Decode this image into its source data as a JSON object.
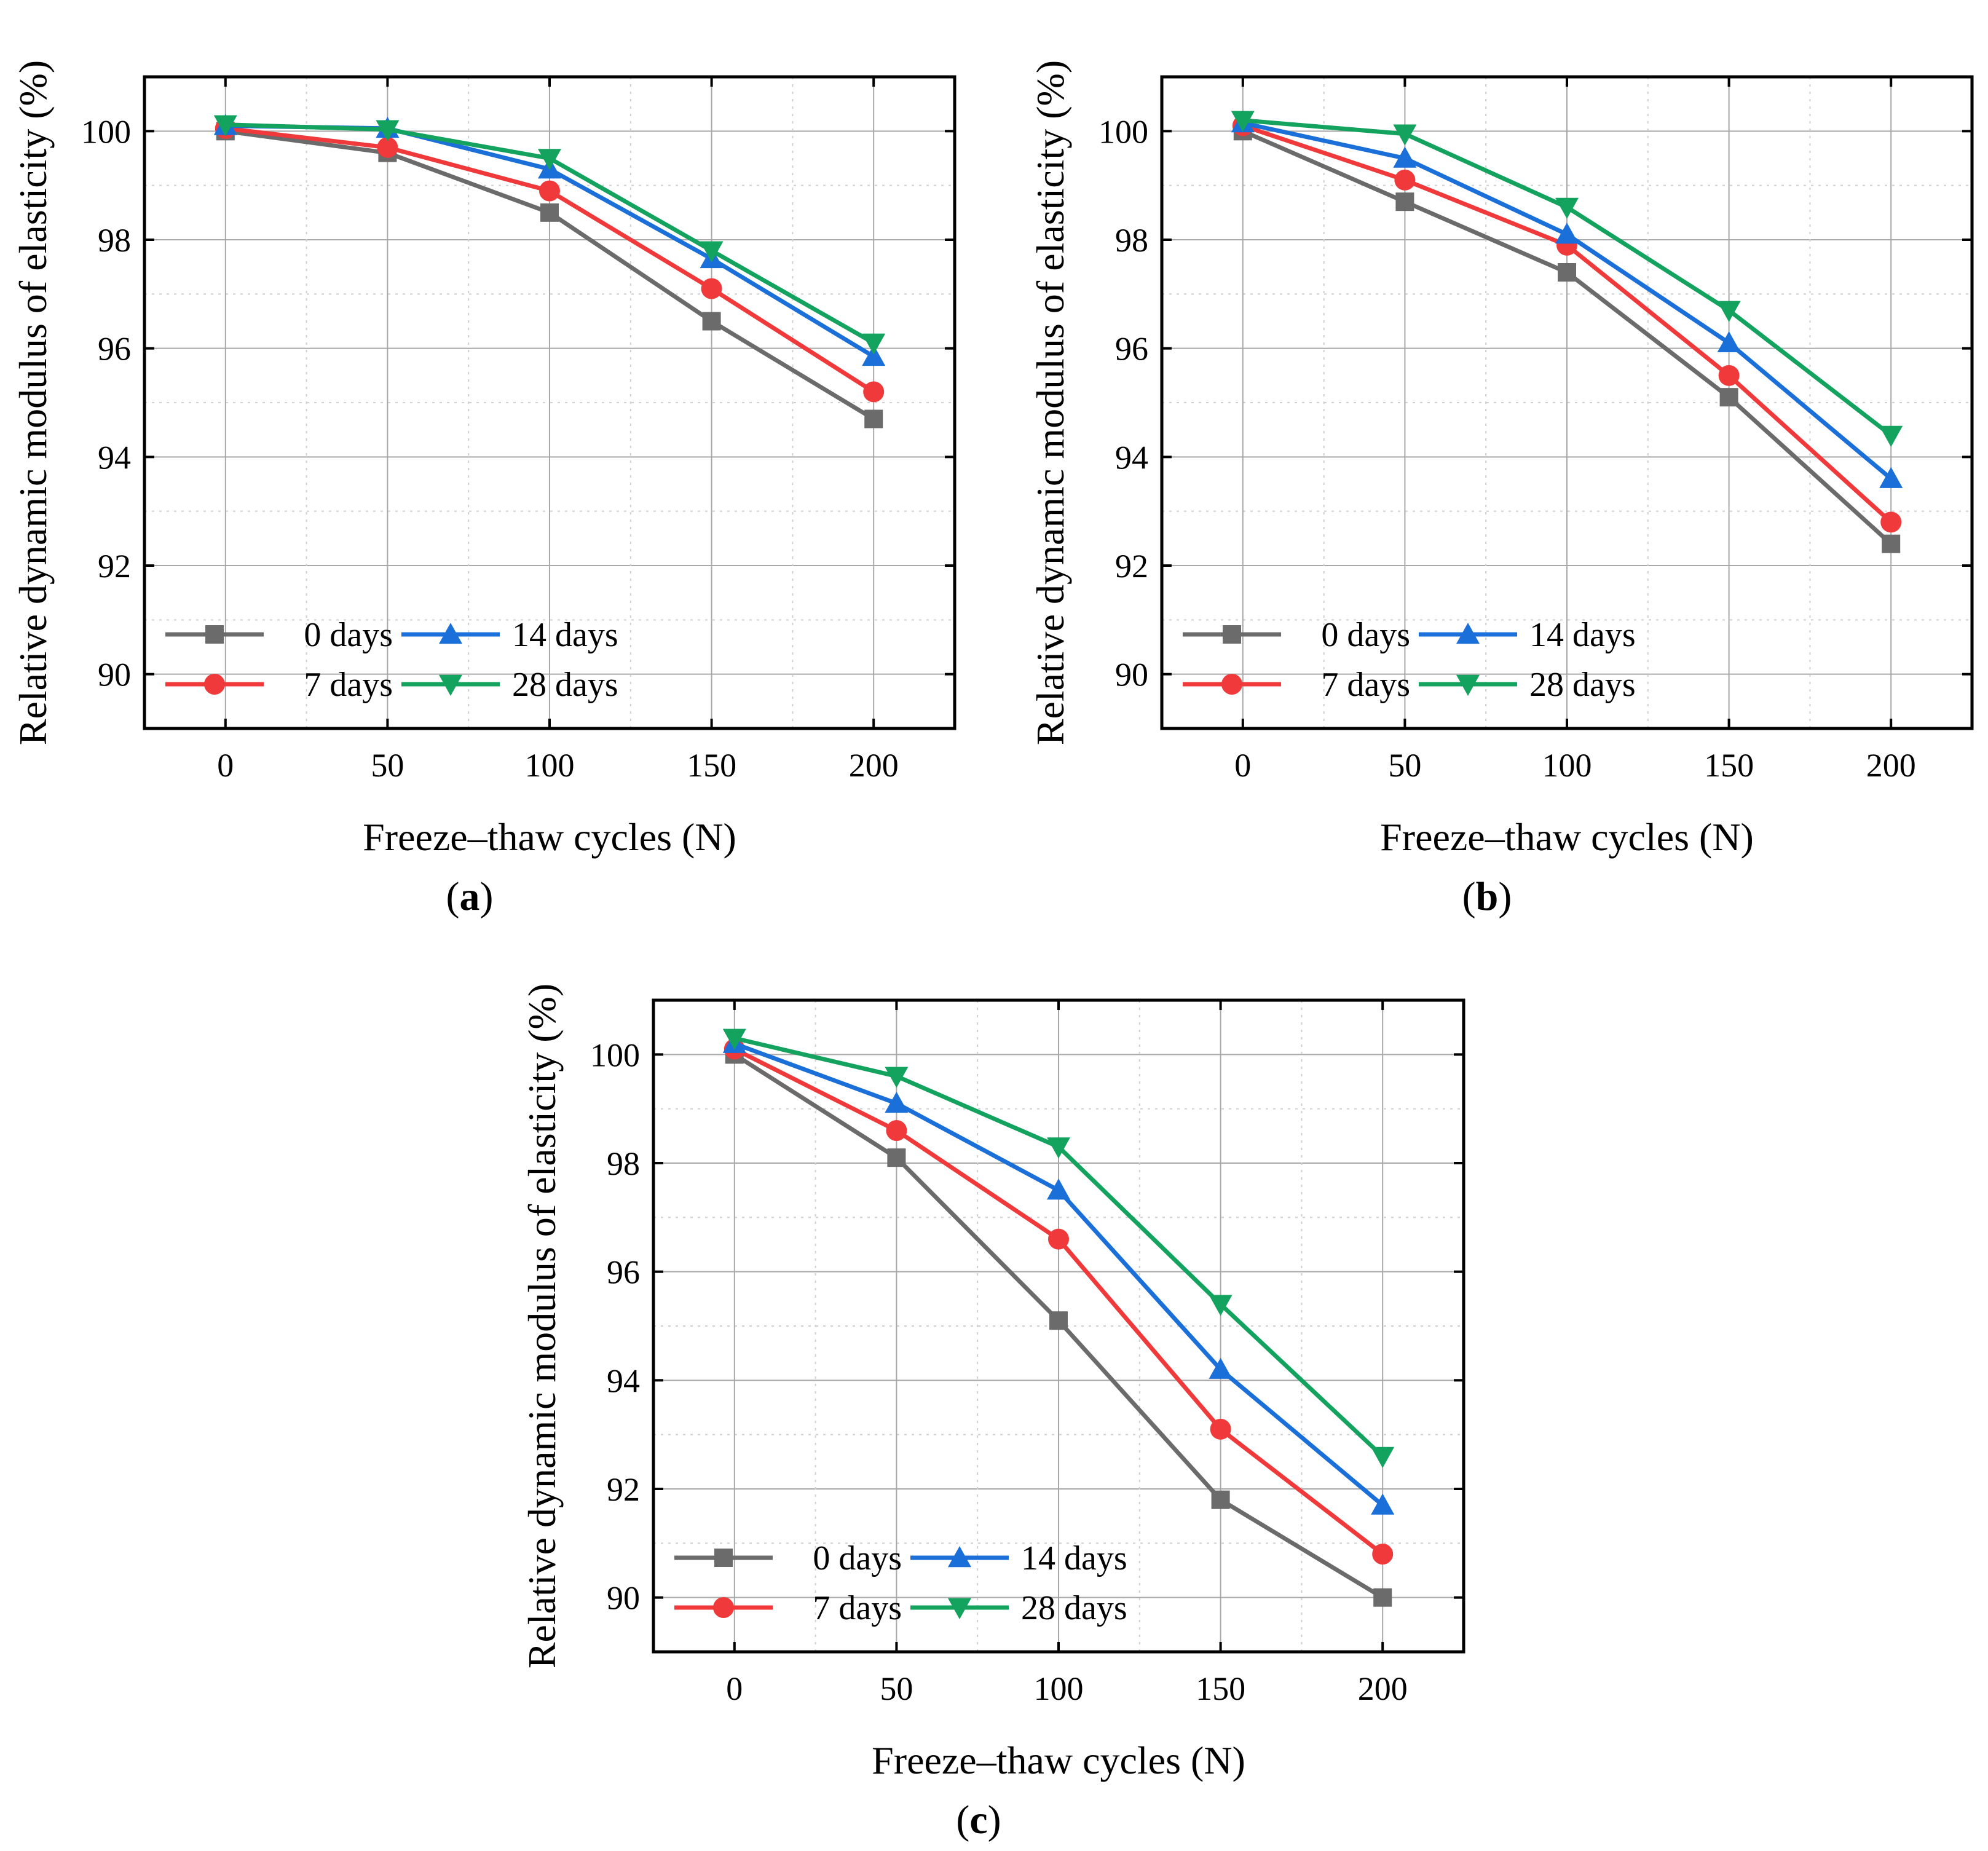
{
  "chart_data": [
    {
      "type": "line",
      "panel_label": "a",
      "xlabel": "Freeze–thaw cycles (N)",
      "ylabel": "Relative dynamic modulus of elasticity (%)",
      "xlim": [
        -25,
        225
      ],
      "ylim": [
        89,
        101
      ],
      "xticks": [
        0,
        50,
        100,
        150,
        200
      ],
      "yticks": [
        90,
        92,
        94,
        96,
        98,
        100
      ],
      "grid": true,
      "legend_position": "bottom-left",
      "x": [
        0,
        50,
        100,
        150,
        200
      ],
      "series": [
        {
          "name": "0 days",
          "color": "#6b6b6b",
          "marker": "square",
          "values": [
            100.0,
            99.6,
            98.5,
            96.5,
            94.7
          ]
        },
        {
          "name": "7 days",
          "color": "#f0393a",
          "marker": "circle",
          "values": [
            100.05,
            99.7,
            98.9,
            97.1,
            95.2
          ]
        },
        {
          "name": "14 days",
          "color": "#1a6fd8",
          "marker": "triangle-up",
          "values": [
            100.1,
            100.05,
            99.3,
            97.65,
            95.85
          ]
        },
        {
          "name": "28 days",
          "color": "#13a35f",
          "marker": "triangle-down",
          "values": [
            100.12,
            100.03,
            99.5,
            97.8,
            96.1
          ]
        }
      ]
    },
    {
      "type": "line",
      "panel_label": "b",
      "xlabel": "Freeze–thaw cycles (N)",
      "ylabel": "Relative dynamic modulus of elasticity (%)",
      "xlim": [
        -25,
        225
      ],
      "ylim": [
        89,
        101
      ],
      "xticks": [
        0,
        50,
        100,
        150,
        200
      ],
      "yticks": [
        90,
        92,
        94,
        96,
        98,
        100
      ],
      "grid": true,
      "legend_position": "bottom-left",
      "x": [
        0,
        50,
        100,
        150,
        200
      ],
      "series": [
        {
          "name": "0 days",
          "color": "#6b6b6b",
          "marker": "square",
          "values": [
            100.0,
            98.7,
            97.4,
            95.1,
            92.4
          ]
        },
        {
          "name": "7 days",
          "color": "#f0393a",
          "marker": "circle",
          "values": [
            100.1,
            99.1,
            97.9,
            95.5,
            92.8
          ]
        },
        {
          "name": "14 days",
          "color": "#1a6fd8",
          "marker": "triangle-up",
          "values": [
            100.15,
            99.5,
            98.1,
            96.1,
            93.6
          ]
        },
        {
          "name": "28 days",
          "color": "#13a35f",
          "marker": "triangle-down",
          "values": [
            100.2,
            99.95,
            98.6,
            96.7,
            94.4
          ]
        }
      ]
    },
    {
      "type": "line",
      "panel_label": "c",
      "xlabel": "Freeze–thaw cycles (N)",
      "ylabel": "Relative dynamic modulus of elasticity (%)",
      "xlim": [
        -25,
        225
      ],
      "ylim": [
        89,
        101
      ],
      "xticks": [
        0,
        50,
        100,
        150,
        200
      ],
      "yticks": [
        90,
        92,
        94,
        96,
        98,
        100
      ],
      "grid": true,
      "legend_position": "bottom-left",
      "x": [
        0,
        50,
        100,
        150,
        200
      ],
      "series": [
        {
          "name": "0 days",
          "color": "#6b6b6b",
          "marker": "square",
          "values": [
            100.0,
            98.1,
            95.1,
            91.8,
            90.0
          ]
        },
        {
          "name": "7 days",
          "color": "#f0393a",
          "marker": "circle",
          "values": [
            100.1,
            98.6,
            96.6,
            93.1,
            90.8
          ]
        },
        {
          "name": "14 days",
          "color": "#1a6fd8",
          "marker": "triangle-up",
          "values": [
            100.2,
            99.1,
            97.5,
            94.2,
            91.7
          ]
        },
        {
          "name": "28 days",
          "color": "#13a35f",
          "marker": "triangle-down",
          "values": [
            100.3,
            99.6,
            98.3,
            95.4,
            92.6
          ]
        }
      ]
    }
  ]
}
